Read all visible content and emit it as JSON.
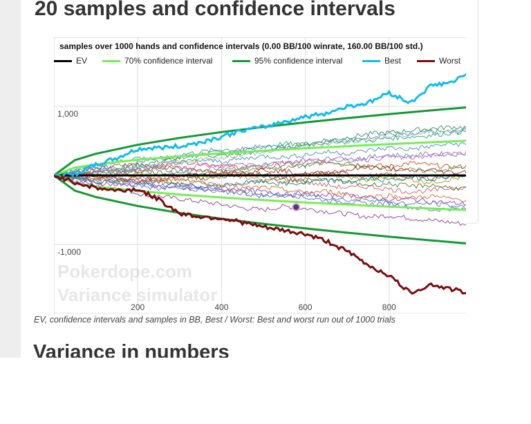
{
  "page": {
    "heading": "20 samples and confidence intervals",
    "next_heading": "Variance in numbers",
    "caption": "EV, confidence intervals and samples in BB, Best / Worst: Best and worst run out of 1000 trials",
    "watermark_line1": "Pokerdope.com",
    "watermark_line2": "Variance simulator"
  },
  "chart_data": {
    "type": "line",
    "title": "samples over 1000 hands and confidence intervals (0.00 BB/100 winrate, 160.00 BB/100 std.)",
    "xlabel": "",
    "ylabel": "",
    "xlim": [
      0,
      1000
    ],
    "ylim": [
      -2000,
      2000
    ],
    "x_ticks": [
      200,
      400,
      600,
      800
    ],
    "y_ticks": [
      1000,
      -1000
    ],
    "y_tick_labels": [
      "1,000",
      "-1,000"
    ],
    "grid": true,
    "legend_position": "top",
    "legend": [
      {
        "name": "EV",
        "color": "#000000"
      },
      {
        "name": "70% confidence interval",
        "color": "#77ee55"
      },
      {
        "name": "95% confidence interval",
        "color": "#119933"
      },
      {
        "name": "Best",
        "color": "#11bbee"
      },
      {
        "name": "Worst",
        "color": "#7a0c0c"
      }
    ],
    "sample_count": 20,
    "ev": {
      "x": [
        0,
        1000
      ],
      "y": [
        0,
        0
      ]
    },
    "ci70": {
      "x": [
        0,
        50,
        100,
        200,
        300,
        400,
        500,
        600,
        700,
        800,
        900,
        1000
      ],
      "y": [
        0,
        113,
        160,
        226,
        277,
        320,
        358,
        392,
        423,
        453,
        480,
        506
      ]
    },
    "ci95": {
      "x": [
        0,
        50,
        100,
        200,
        300,
        400,
        500,
        600,
        700,
        800,
        900,
        1000
      ],
      "y": [
        0,
        221,
        313,
        443,
        543,
        627,
        701,
        768,
        830,
        887,
        941,
        992
      ]
    },
    "best": {
      "x": [
        0,
        50,
        100,
        150,
        200,
        250,
        300,
        350,
        400,
        450,
        500,
        550,
        600,
        650,
        700,
        750,
        800,
        850,
        900,
        950,
        1000
      ],
      "y": [
        0,
        20,
        150,
        250,
        380,
        400,
        420,
        480,
        560,
        650,
        700,
        780,
        850,
        900,
        1000,
        1050,
        1200,
        1050,
        1300,
        1350,
        1500
      ]
    },
    "worst": {
      "x": [
        0,
        50,
        100,
        150,
        200,
        250,
        300,
        350,
        400,
        450,
        500,
        550,
        600,
        650,
        700,
        750,
        800,
        850,
        900,
        950,
        1000
      ],
      "y": [
        0,
        -100,
        -180,
        -220,
        -200,
        -350,
        -550,
        -600,
        -620,
        -680,
        -750,
        -800,
        -850,
        -950,
        -1100,
        -1300,
        -1450,
        -1700,
        -1580,
        -1650,
        -1720
      ]
    },
    "samples": [
      {
        "color": "#5a7ab0",
        "y": [
          0,
          60,
          120,
          80,
          200,
          260,
          240,
          310,
          330,
          380,
          420,
          390,
          460,
          520,
          480,
          560,
          600,
          580,
          640,
          620,
          680
        ]
      },
      {
        "color": "#8b3a8b",
        "y": [
          0,
          -80,
          -140,
          -180,
          -260,
          -300,
          -340,
          -380,
          -420,
          -470,
          -500,
          -450,
          -480,
          -520,
          -560,
          -600,
          -580,
          -620,
          -650,
          -680,
          -720
        ]
      },
      {
        "color": "#c04a1a",
        "y": [
          0,
          40,
          90,
          140,
          170,
          120,
          200,
          180,
          140,
          120,
          100,
          160,
          140,
          200,
          170,
          150,
          130,
          180,
          150,
          120,
          140
        ]
      },
      {
        "color": "#2e8b57",
        "y": [
          0,
          50,
          30,
          90,
          150,
          200,
          250,
          300,
          280,
          320,
          350,
          420,
          450,
          500,
          550,
          600,
          620,
          650,
          680,
          700,
          690
        ]
      },
      {
        "color": "#b08d1a",
        "y": [
          0,
          -30,
          -60,
          -20,
          20,
          -40,
          -80,
          -30,
          10,
          -20,
          -60,
          -90,
          -40,
          20,
          -30,
          -70,
          -20,
          -60,
          -100,
          -50,
          -10
        ]
      },
      {
        "color": "#6a5acd",
        "y": [
          0,
          -40,
          20,
          -60,
          -100,
          -160,
          -120,
          -180,
          -220,
          -260,
          -300,
          -260,
          -320,
          -360,
          -380,
          -420,
          -400,
          -460,
          -500,
          -480,
          -520
        ]
      },
      {
        "color": "#20a090",
        "y": [
          0,
          80,
          140,
          200,
          260,
          220,
          300,
          340,
          380,
          360,
          420,
          460,
          440,
          480,
          520,
          500,
          540,
          560,
          580,
          620,
          640
        ]
      },
      {
        "color": "#a0522d",
        "y": [
          0,
          -20,
          40,
          80,
          60,
          120,
          100,
          80,
          60,
          40,
          20,
          -20,
          0,
          40,
          20,
          -10,
          10,
          -20,
          -40,
          0,
          20
        ]
      },
      {
        "color": "#708090",
        "y": [
          0,
          30,
          -10,
          -50,
          -30,
          10,
          40,
          80,
          120,
          100,
          160,
          180,
          200,
          240,
          220,
          260,
          300,
          280,
          320,
          300,
          340
        ]
      },
      {
        "color": "#9932cc",
        "y": [
          0,
          -60,
          -100,
          -140,
          -120,
          -160,
          -200,
          -180,
          -220,
          -200,
          -240,
          -280,
          -260,
          -300,
          -280,
          -320,
          -360,
          -340,
          -380,
          -400,
          -420
        ]
      },
      {
        "color": "#4a9a4a",
        "y": [
          0,
          20,
          60,
          40,
          80,
          100,
          60,
          20,
          40,
          80,
          120,
          100,
          140,
          180,
          160,
          120,
          100,
          80,
          60,
          100,
          140
        ]
      },
      {
        "color": "#cd5c5c",
        "y": [
          0,
          -20,
          -60,
          -100,
          -80,
          -40,
          -60,
          -100,
          -140,
          -120,
          -80,
          -60,
          -100,
          -140,
          -180,
          -160,
          -200,
          -240,
          -220,
          -180,
          -160
        ]
      },
      {
        "color": "#3c8dbc",
        "y": [
          0,
          50,
          100,
          130,
          110,
          160,
          190,
          220,
          200,
          240,
          280,
          260,
          300,
          340,
          320,
          360,
          400,
          380,
          420,
          460,
          440
        ]
      },
      {
        "color": "#8fbc8f",
        "y": [
          0,
          -10,
          30,
          70,
          110,
          150,
          190,
          230,
          260,
          300,
          330,
          380,
          420,
          460,
          490,
          520,
          560,
          590,
          620,
          650,
          690
        ]
      },
      {
        "color": "#d2691e",
        "y": [
          0,
          10,
          -30,
          -70,
          -50,
          -90,
          -130,
          -110,
          -150,
          -190,
          -170,
          -210,
          -250,
          -230,
          -270,
          -310,
          -290,
          -330,
          -300,
          -340,
          -360
        ]
      },
      {
        "color": "#556b2f",
        "y": [
          0,
          -40,
          -20,
          20,
          60,
          40,
          0,
          -40,
          -20,
          20,
          0,
          -40,
          -80,
          -60,
          -100,
          -140,
          -120,
          -160,
          -140,
          -180,
          -200
        ]
      },
      {
        "color": "#ba55d3",
        "y": [
          0,
          30,
          70,
          50,
          90,
          130,
          110,
          150,
          130,
          170,
          150,
          190,
          230,
          210,
          250,
          230,
          270,
          250,
          290,
          310,
          350
        ]
      },
      {
        "color": "#008b8b",
        "y": [
          0,
          -50,
          -90,
          -70,
          -110,
          -90,
          -130,
          -170,
          -150,
          -110,
          -90,
          -130,
          -110,
          -70,
          -90,
          -50,
          -70,
          -30,
          -50,
          -10,
          10
        ]
      },
      {
        "color": "#b22222",
        "y": [
          0,
          20,
          0,
          -40,
          -80,
          -60,
          -20,
          20,
          60,
          40,
          80,
          60,
          20,
          40,
          80,
          120,
          100,
          60,
          80,
          40,
          60
        ]
      },
      {
        "color": "#4682b4",
        "y": [
          0,
          -30,
          -70,
          -110,
          -150,
          -190,
          -170,
          -210,
          -250,
          -230,
          -270,
          -300,
          -280,
          -320,
          -360,
          -340,
          -380,
          -420,
          -400,
          -440,
          -480
        ]
      }
    ]
  }
}
